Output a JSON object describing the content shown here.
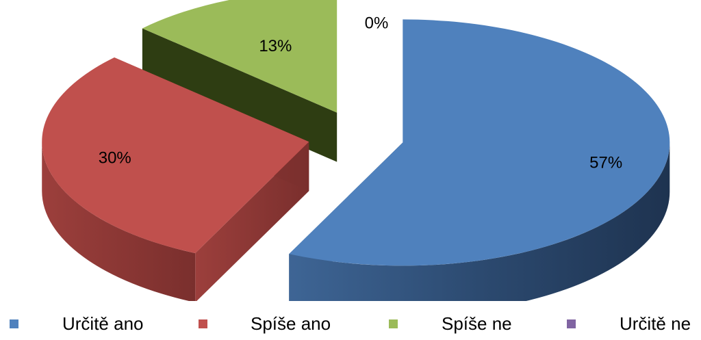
{
  "chart_data": {
    "type": "pie",
    "categories": [
      "Určitě ano",
      "Spíše ano",
      "Spíše ne",
      "Určitě ne"
    ],
    "values": [
      57,
      30,
      13,
      0
    ],
    "data_labels": [
      "57%",
      "30%",
      "13%",
      "0%"
    ],
    "colors": [
      "#4F81BD",
      "#C0504D",
      "#9BBB59",
      "#8064A2"
    ],
    "title": "",
    "legend_position": "bottom",
    "exploded": true,
    "three_d": true
  }
}
